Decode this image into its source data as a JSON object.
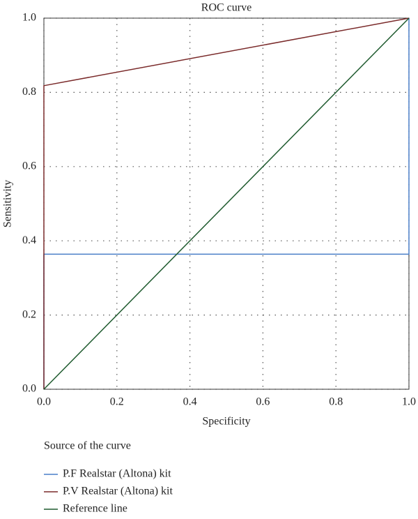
{
  "chart_data": {
    "type": "line",
    "title": "ROC curve",
    "x_label": "Specificity",
    "y_label": "Sensitivity",
    "legend_title": "Source of the curve",
    "xlim": [
      0,
      1
    ],
    "ylim": [
      0,
      1
    ],
    "xticks": [
      {
        "value": 0,
        "label": "0.0"
      },
      0.2,
      0.4,
      0.6,
      0.8,
      {
        "value": 1,
        "label": "1.0"
      }
    ],
    "yticks": [
      {
        "value": 0,
        "label": "0.0"
      },
      0.2,
      0.4,
      0.6,
      0.8,
      {
        "value": 1,
        "label": "1.0"
      }
    ],
    "grid": true,
    "series": [
      {
        "name": "P.F Realstar (Altona) kit",
        "color": "#4a7fc8",
        "x": [
          0,
          0,
          1,
          1
        ],
        "values": [
          0,
          0.364,
          0.364,
          1
        ]
      },
      {
        "name": "P.V Realstar (Altona) kit",
        "color": "#7a2a2a",
        "x": [
          0,
          0,
          1
        ],
        "values": [
          0,
          0.818,
          1
        ]
      },
      {
        "name": "Reference line",
        "color": "#1e5a2e",
        "x": [
          0,
          1
        ],
        "values": [
          0,
          1
        ]
      }
    ]
  }
}
